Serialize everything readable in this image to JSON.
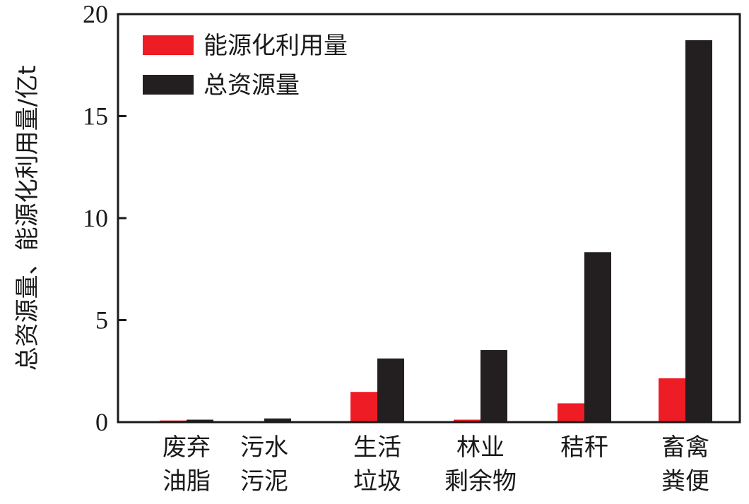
{
  "chart_data": {
    "type": "bar",
    "title": "",
    "xlabel": "",
    "ylabel": "总资源量、能源化利用量/亿t",
    "ylim": [
      0,
      20
    ],
    "yticks": [
      0,
      5,
      10,
      15,
      20
    ],
    "grid": false,
    "legend_position": "top-left",
    "categories": [
      [
        "废弃",
        "油脂"
      ],
      [
        "污水",
        "污泥"
      ],
      [
        "生活",
        "垃圾"
      ],
      [
        "林业",
        "剩余物"
      ],
      [
        "秸秆"
      ],
      [
        "畜禽",
        "粪便"
      ]
    ],
    "series": [
      {
        "name": "能源化利用量",
        "color": "#ee1c25",
        "values": [
          0.08,
          0.05,
          1.48,
          0.12,
          0.92,
          2.15
        ]
      },
      {
        "name": "总资源量",
        "color": "#231f20",
        "values": [
          0.12,
          0.18,
          3.12,
          3.53,
          8.33,
          18.72
        ]
      }
    ]
  }
}
